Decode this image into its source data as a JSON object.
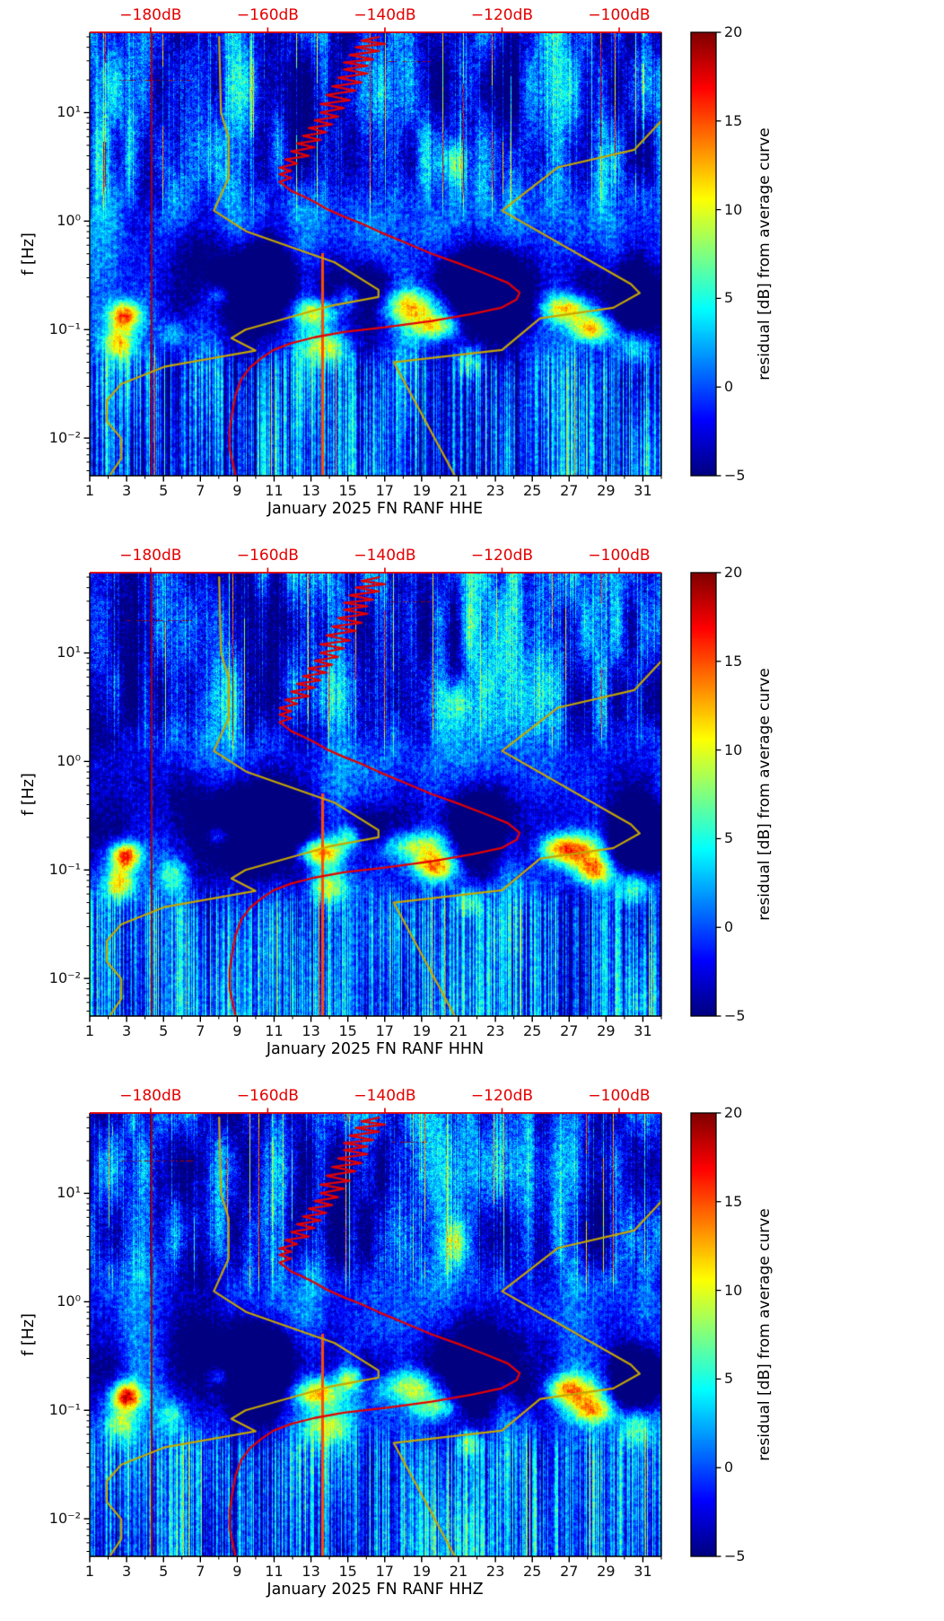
{
  "figure": {
    "background": "#ffffff",
    "description": "Three stacked seismic noise spectrograms (residual PSD vs average) with Peterson noise model curves and station average PSD curve overlaid"
  },
  "chart_data": {
    "type": "heatmap",
    "subtype": "spectrogram",
    "colormap": "jet",
    "network": "FN",
    "station": "RANF",
    "month": "January 2025",
    "panels": [
      {
        "channel": "HHE",
        "xlabel": "January 2025 FN RANF  HHE"
      },
      {
        "channel": "HHN",
        "xlabel": "January 2025 FN RANF  HHN"
      },
      {
        "channel": "HHZ",
        "xlabel": "January 2025 FN RANF  HHZ"
      }
    ],
    "x_axis": {
      "range_days": [
        1,
        32
      ],
      "major_ticks": [
        1,
        3,
        5,
        7,
        9,
        11,
        13,
        15,
        17,
        19,
        21,
        23,
        25,
        27,
        29,
        31
      ],
      "major_tick_labels": [
        "1",
        "3",
        "5",
        "7",
        "9",
        "11",
        "13",
        "15",
        "17",
        "19",
        "21",
        "23",
        "25",
        "27",
        "29",
        "31"
      ],
      "minor_ticks": [
        2,
        4,
        6,
        8,
        10,
        12,
        14,
        16,
        18,
        20,
        22,
        24,
        26,
        28,
        30,
        32
      ]
    },
    "y_axis": {
      "label": "f [Hz]",
      "scale": "log",
      "range_hz": [
        0.0045,
        55
      ],
      "major_ticks": [
        {
          "value": 0.01,
          "label": "10⁻²"
        },
        {
          "value": 0.1,
          "label": "10⁻¹"
        },
        {
          "value": 1,
          "label": "10⁰"
        },
        {
          "value": 10,
          "label": "10¹"
        }
      ]
    },
    "top_axis": {
      "color": "#e40000",
      "units": "dB",
      "range_db": [
        -190.4,
        -92.8
      ],
      "major_ticks": [
        {
          "value": -180,
          "label": "−180dB"
        },
        {
          "value": -160,
          "label": "−160dB"
        },
        {
          "value": -140,
          "label": "−140dB"
        },
        {
          "value": -120,
          "label": "−120dB"
        },
        {
          "value": -100,
          "label": "−100dB"
        }
      ]
    },
    "colorbar": {
      "label": "residual [dB] from average curve",
      "range": [
        -5,
        20
      ],
      "ticks": [
        20,
        15,
        10,
        5,
        0,
        -5
      ],
      "tick_labels": [
        "20",
        "15",
        "10",
        "5",
        "0",
        "−5"
      ],
      "colormap": "jet"
    },
    "overlay_curves": {
      "average_psd": {
        "color": "#e40000",
        "width": 2.3,
        "points_hz_db": [
          [
            50,
            -141
          ],
          [
            46,
            -144
          ],
          [
            43,
            -140
          ],
          [
            40,
            -145
          ],
          [
            37,
            -141
          ],
          [
            34,
            -146
          ],
          [
            31,
            -142
          ],
          [
            29,
            -147
          ],
          [
            27,
            -143
          ],
          [
            25,
            -147
          ],
          [
            23,
            -143
          ],
          [
            21,
            -148
          ],
          [
            19,
            -144
          ],
          [
            17.5,
            -149
          ],
          [
            16,
            -145
          ],
          [
            14.5,
            -150
          ],
          [
            13,
            -146
          ],
          [
            12,
            -151
          ],
          [
            11,
            -147
          ],
          [
            10,
            -151
          ],
          [
            9.2,
            -148
          ],
          [
            8.5,
            -152
          ],
          [
            7.8,
            -149
          ],
          [
            7.2,
            -153
          ],
          [
            6.6,
            -150
          ],
          [
            6.1,
            -154
          ],
          [
            5.6,
            -151
          ],
          [
            5.2,
            -155
          ],
          [
            4.8,
            -152
          ],
          [
            4.4,
            -156
          ],
          [
            4.0,
            -153
          ],
          [
            3.7,
            -157
          ],
          [
            3.4,
            -155
          ],
          [
            3.1,
            -158
          ],
          [
            2.9,
            -156
          ],
          [
            2.7,
            -158
          ],
          [
            2.5,
            -156
          ],
          [
            2.3,
            -158
          ],
          [
            2.1,
            -157
          ],
          [
            1.9,
            -156
          ],
          [
            1.7,
            -154
          ],
          [
            1.5,
            -152
          ],
          [
            1.3,
            -150
          ],
          [
            1.1,
            -147
          ],
          [
            0.95,
            -144
          ],
          [
            0.8,
            -141
          ],
          [
            0.65,
            -137
          ],
          [
            0.5,
            -132
          ],
          [
            0.4,
            -127
          ],
          [
            0.33,
            -123
          ],
          [
            0.27,
            -119
          ],
          [
            0.22,
            -117
          ],
          [
            0.19,
            -117.5
          ],
          [
            0.16,
            -120
          ],
          [
            0.14,
            -125
          ],
          [
            0.12,
            -132
          ],
          [
            0.105,
            -140
          ],
          [
            0.095,
            -147
          ],
          [
            0.085,
            -152
          ],
          [
            0.075,
            -156
          ],
          [
            0.065,
            -159
          ],
          [
            0.055,
            -161
          ],
          [
            0.045,
            -163
          ],
          [
            0.035,
            -164.5
          ],
          [
            0.025,
            -165.5
          ],
          [
            0.018,
            -166
          ],
          [
            0.012,
            -166.5
          ],
          [
            0.008,
            -166.5
          ],
          [
            0.006,
            -166
          ],
          [
            0.0045,
            -165.5
          ]
        ]
      },
      "low_noise_model": {
        "color": "#c5a600",
        "width": 2.2,
        "points_hz_db": [
          [
            50,
            -168.3
          ],
          [
            10,
            -168.0
          ],
          [
            5.9,
            -166.7
          ],
          [
            2.5,
            -166.7
          ],
          [
            1.25,
            -169.2
          ],
          [
            0.806,
            -163.7
          ],
          [
            0.417,
            -148.6
          ],
          [
            0.233,
            -141.1
          ],
          [
            0.2,
            -141.1
          ],
          [
            0.167,
            -149.0
          ],
          [
            0.1,
            -163.8
          ],
          [
            0.0833,
            -166.2
          ],
          [
            0.0641,
            -162.1
          ],
          [
            0.0457,
            -177.5
          ],
          [
            0.0316,
            -185.0
          ],
          [
            0.0222,
            -187.5
          ],
          [
            0.0143,
            -187.5
          ],
          [
            0.0099,
            -185.0
          ],
          [
            0.0065,
            -185.0
          ],
          [
            0.0045,
            -187.0
          ]
        ]
      },
      "high_noise_model": {
        "color": "#c5a600",
        "width": 2.2,
        "points_hz_db": [
          [
            50,
            -91.5
          ],
          [
            10,
            -91.5
          ],
          [
            4.55,
            -97.4
          ],
          [
            3.125,
            -110.5
          ],
          [
            1.25,
            -120.0
          ],
          [
            0.263,
            -98.0
          ],
          [
            0.217,
            -96.5
          ],
          [
            0.159,
            -101.0
          ],
          [
            0.127,
            -113.5
          ],
          [
            0.0649,
            -120.0
          ],
          [
            0.05,
            -138.5
          ],
          [
            0.0028,
            -126.0
          ]
        ]
      }
    },
    "texture_features": {
      "bright_blobs_format": "[day, freq_hz, sigma_days, sigma_log10f, amplitude_db]",
      "bright_blobs": [
        [
          2.9,
          0.135,
          0.6,
          0.09,
          16
        ],
        [
          2.6,
          0.075,
          0.55,
          0.11,
          11
        ],
        [
          13.4,
          0.145,
          0.9,
          0.09,
          14
        ],
        [
          13.9,
          0.07,
          0.8,
          0.12,
          9
        ],
        [
          18.6,
          0.165,
          1.3,
          0.11,
          13
        ],
        [
          19.8,
          0.105,
          0.9,
          0.09,
          11
        ],
        [
          26.9,
          0.155,
          1.2,
          0.1,
          15
        ],
        [
          28.3,
          0.1,
          0.8,
          0.09,
          13
        ],
        [
          30.6,
          0.07,
          0.7,
          0.12,
          9
        ],
        [
          8.1,
          0.21,
          0.5,
          0.07,
          7
        ],
        [
          21.6,
          0.05,
          0.5,
          0.1,
          7
        ],
        [
          15.1,
          0.2,
          0.5,
          0.08,
          8
        ],
        [
          5.5,
          0.09,
          0.5,
          0.1,
          6
        ],
        [
          20.9,
          3.5,
          0.5,
          0.15,
          9
        ]
      ],
      "dark_blobs": [
        [
          10.2,
          0.3,
          1.8,
          0.22,
          -8
        ],
        [
          22.6,
          0.32,
          1.7,
          0.2,
          -6.5
        ],
        [
          30.9,
          0.19,
          1.0,
          0.16,
          -7
        ],
        [
          16.2,
          0.24,
          0.9,
          0.14,
          -5.5
        ],
        [
          6.5,
          0.5,
          1.2,
          0.25,
          -4
        ],
        [
          25.0,
          0.15,
          0.8,
          0.12,
          -6
        ]
      ],
      "event_lines_format": "[day, freq_top_hz, freq_bottom_hz, residual_db]",
      "event_lines": [
        [
          4.35,
          55,
          0.0045,
          19
        ],
        [
          13.62,
          0.5,
          0.0045,
          15
        ]
      ],
      "dotted_rows_format": "[freq_hz, day_start, day_end]",
      "dotted_rows": [
        [
          20,
          2.6,
          6.6
        ],
        [
          30,
          17.2,
          19.6
        ]
      ]
    }
  }
}
